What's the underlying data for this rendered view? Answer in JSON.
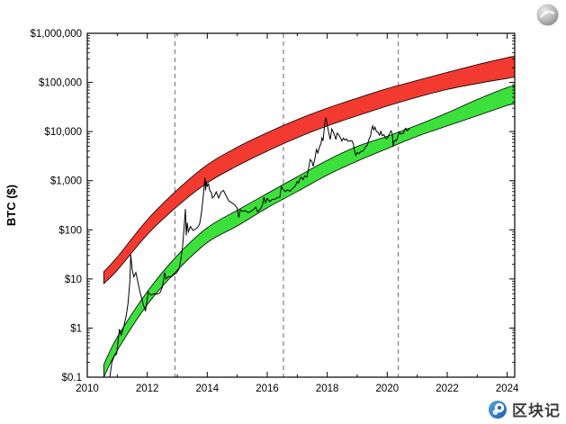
{
  "watermark": {
    "text": "区块记"
  },
  "chart_data": {
    "type": "line",
    "title": "",
    "ylabel": "BTC ($)",
    "x_range": [
      2010,
      2024.25
    ],
    "y_range_log": [
      0.1,
      1000000
    ],
    "x_ticks": [
      2010,
      2012,
      2014,
      2016,
      2018,
      2020,
      2022,
      2024
    ],
    "y_ticks": [
      {
        "value": 0.1,
        "label": "$0.1"
      },
      {
        "value": 1,
        "label": "$1"
      },
      {
        "value": 10,
        "label": "$10"
      },
      {
        "value": 100,
        "label": "$100"
      },
      {
        "value": 1000,
        "label": "$1,000"
      },
      {
        "value": 10000,
        "label": "$10,000"
      },
      {
        "value": 100000,
        "label": "$100,000"
      },
      {
        "value": 1000000,
        "label": "$1,000,000"
      }
    ],
    "halving_lines": [
      2012.92,
      2016.54,
      2020.37
    ],
    "colors": {
      "red_band": "#f23a30",
      "green_band": "#3ce03a",
      "band_outline": "#000000",
      "price_line": "#000000",
      "halving_line": "#666666",
      "axis": "#000000"
    },
    "bands": [
      {
        "name": "upper-red-band",
        "years": [
          2010.55,
          2011,
          2012,
          2013,
          2014,
          2015,
          2016,
          2017,
          2018,
          2019,
          2020,
          2021,
          2022,
          2023,
          2024,
          2024.3
        ],
        "lower": [
          8,
          15,
          80,
          300,
          900,
          2000,
          4000,
          7500,
          13000,
          21000,
          33000,
          50000,
          72000,
          95000,
          121000,
          130000
        ],
        "upper": [
          14,
          28,
          160,
          650,
          2100,
          4800,
          9500,
          17500,
          30000,
          48000,
          75000,
          110000,
          160000,
          230000,
          320000,
          345000
        ]
      },
      {
        "name": "lower-green-band",
        "years": [
          2010.55,
          2011,
          2012,
          2013,
          2014,
          2015,
          2016,
          2017,
          2018,
          2019,
          2020,
          2021,
          2022,
          2023,
          2024,
          2024.3
        ],
        "lower": [
          0.1,
          0.35,
          3,
          15,
          55,
          120,
          280,
          600,
          1300,
          2500,
          4500,
          8000,
          13000,
          21000,
          34000,
          37000
        ],
        "upper": [
          0.18,
          0.65,
          5.5,
          30,
          110,
          250,
          550,
          1200,
          2600,
          5000,
          8000,
          13500,
          24000,
          45000,
          79000,
          86000
        ]
      }
    ],
    "price_series": {
      "name": "BTC price",
      "points": [
        [
          2010.58,
          0.09
        ],
        [
          2010.66,
          0.07
        ],
        [
          2010.74,
          0.09
        ],
        [
          2010.82,
          0.2
        ],
        [
          2010.9,
          0.27
        ],
        [
          2010.98,
          0.3
        ],
        [
          2011.07,
          0.95
        ],
        [
          2011.13,
          0.72
        ],
        [
          2011.22,
          1.1
        ],
        [
          2011.3,
          1.8
        ],
        [
          2011.36,
          3.2
        ],
        [
          2011.42,
          8.8
        ],
        [
          2011.45,
          31
        ],
        [
          2011.5,
          15
        ],
        [
          2011.55,
          11
        ],
        [
          2011.62,
          13.5
        ],
        [
          2011.7,
          7.8
        ],
        [
          2011.78,
          4.8
        ],
        [
          2011.87,
          3.0
        ],
        [
          2011.94,
          2.2
        ],
        [
          2012.03,
          5.4
        ],
        [
          2012.12,
          4.7
        ],
        [
          2012.22,
          5.0
        ],
        [
          2012.32,
          4.9
        ],
        [
          2012.42,
          5.2
        ],
        [
          2012.5,
          6.7
        ],
        [
          2012.58,
          13.5
        ],
        [
          2012.62,
          10
        ],
        [
          2012.7,
          11.2
        ],
        [
          2012.8,
          11
        ],
        [
          2012.9,
          12.4
        ],
        [
          2012.98,
          13.4
        ],
        [
          2013.06,
          16
        ],
        [
          2013.12,
          25
        ],
        [
          2013.18,
          47
        ],
        [
          2013.24,
          140
        ],
        [
          2013.27,
          266
        ],
        [
          2013.3,
          77
        ],
        [
          2013.33,
          140
        ],
        [
          2013.37,
          91
        ],
        [
          2013.44,
          117
        ],
        [
          2013.52,
          98
        ],
        [
          2013.6,
          103
        ],
        [
          2013.68,
          112
        ],
        [
          2013.75,
          135
        ],
        [
          2013.81,
          230
        ],
        [
          2013.87,
          500
        ],
        [
          2013.92,
          1150
        ],
        [
          2013.945,
          640
        ],
        [
          2013.97,
          980
        ],
        [
          2014.0,
          770
        ],
        [
          2014.04,
          855
        ],
        [
          2014.09,
          615
        ],
        [
          2014.13,
          585
        ],
        [
          2014.17,
          445
        ],
        [
          2014.24,
          490
        ],
        [
          2014.3,
          590
        ],
        [
          2014.38,
          445
        ],
        [
          2014.46,
          585
        ],
        [
          2014.54,
          635
        ],
        [
          2014.63,
          490
        ],
        [
          2014.72,
          385
        ],
        [
          2014.82,
          355
        ],
        [
          2014.92,
          320
        ],
        [
          2015.0,
          272
        ],
        [
          2015.05,
          178
        ],
        [
          2015.1,
          255
        ],
        [
          2015.18,
          237
        ],
        [
          2015.27,
          247
        ],
        [
          2015.36,
          224
        ],
        [
          2015.45,
          236
        ],
        [
          2015.55,
          262
        ],
        [
          2015.62,
          288
        ],
        [
          2015.68,
          231
        ],
        [
          2015.77,
          264
        ],
        [
          2015.84,
          320
        ],
        [
          2015.89,
          460
        ],
        [
          2015.94,
          355
        ],
        [
          2016.0,
          432
        ],
        [
          2016.08,
          374
        ],
        [
          2016.17,
          416
        ],
        [
          2016.26,
          421
        ],
        [
          2016.34,
          452
        ],
        [
          2016.42,
          462
        ],
        [
          2016.47,
          762
        ],
        [
          2016.53,
          662
        ],
        [
          2016.6,
          598
        ],
        [
          2016.68,
          655
        ],
        [
          2016.76,
          608
        ],
        [
          2016.85,
          702
        ],
        [
          2016.94,
          788
        ],
        [
          2017.0,
          972
        ],
        [
          2017.04,
          888
        ],
        [
          2017.09,
          1080
        ],
        [
          2017.14,
          1180
        ],
        [
          2017.19,
          1050
        ],
        [
          2017.25,
          1255
        ],
        [
          2017.32,
          1180
        ],
        [
          2017.38,
          1790
        ],
        [
          2017.43,
          2700
        ],
        [
          2017.49,
          2450
        ],
        [
          2017.53,
          1960
        ],
        [
          2017.59,
          2860
        ],
        [
          2017.64,
          4330
        ],
        [
          2017.69,
          3660
        ],
        [
          2017.74,
          4820
        ],
        [
          2017.79,
          5700
        ],
        [
          2017.82,
          7400
        ],
        [
          2017.86,
          6480
        ],
        [
          2017.89,
          9900
        ],
        [
          2017.93,
          16600
        ],
        [
          2017.955,
          19100
        ],
        [
          2018.0,
          13900
        ],
        [
          2018.04,
          10200
        ],
        [
          2018.07,
          8300
        ],
        [
          2018.1,
          6900
        ],
        [
          2018.15,
          11300
        ],
        [
          2018.2,
          9850
        ],
        [
          2018.25,
          8250
        ],
        [
          2018.29,
          6900
        ],
        [
          2018.33,
          9300
        ],
        [
          2018.39,
          8450
        ],
        [
          2018.44,
          7500
        ],
        [
          2018.49,
          6400
        ],
        [
          2018.54,
          7400
        ],
        [
          2018.59,
          6700
        ],
        [
          2018.64,
          7080
        ],
        [
          2018.7,
          6300
        ],
        [
          2018.77,
          6480
        ],
        [
          2018.83,
          6430
        ],
        [
          2018.87,
          5600
        ],
        [
          2018.9,
          4300
        ],
        [
          2018.95,
          3280
        ],
        [
          2019.0,
          3760
        ],
        [
          2019.05,
          3530
        ],
        [
          2019.12,
          3920
        ],
        [
          2019.2,
          4020
        ],
        [
          2019.28,
          4920
        ],
        [
          2019.34,
          5320
        ],
        [
          2019.4,
          7200
        ],
        [
          2019.44,
          7980
        ],
        [
          2019.48,
          11200
        ],
        [
          2019.52,
          13000
        ],
        [
          2019.55,
          10800
        ],
        [
          2019.59,
          12250
        ],
        [
          2019.64,
          10050
        ],
        [
          2019.69,
          9680
        ],
        [
          2019.74,
          8420
        ],
        [
          2019.79,
          10150
        ],
        [
          2019.83,
          8300
        ],
        [
          2019.89,
          8650
        ],
        [
          2019.95,
          7180
        ],
        [
          2020.0,
          7220
        ],
        [
          2020.05,
          8400
        ],
        [
          2020.1,
          9750
        ],
        [
          2020.13,
          10300
        ],
        [
          2020.17,
          8800
        ],
        [
          2020.2,
          4940
        ],
        [
          2020.23,
          6420
        ],
        [
          2020.27,
          6700
        ],
        [
          2020.3,
          6430
        ],
        [
          2020.34,
          7320
        ],
        [
          2020.38,
          8820
        ],
        [
          2020.42,
          9620
        ],
        [
          2020.46,
          8890
        ],
        [
          2020.5,
          9230
        ],
        [
          2020.54,
          9140
        ],
        [
          2020.58,
          11020
        ],
        [
          2020.62,
          11720
        ],
        [
          2020.66,
          10380
        ],
        [
          2020.7,
          10700
        ],
        [
          2020.73,
          11480
        ]
      ]
    }
  }
}
